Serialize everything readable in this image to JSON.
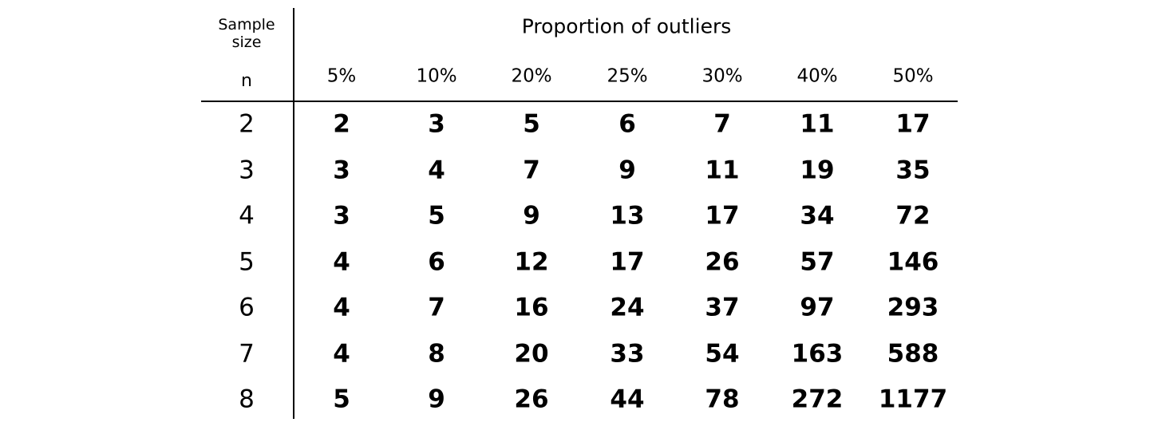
{
  "header": {
    "sample_label": "Sample\nsize",
    "n_label": "n",
    "proportion_label": "Proportion of outliers"
  },
  "columns": [
    "5%",
    "10%",
    "20%",
    "25%",
    "30%",
    "40%",
    "50%"
  ],
  "rows": [
    {
      "n": "2",
      "values": [
        "2",
        "3",
        "5",
        "6",
        "7",
        "11",
        "17"
      ]
    },
    {
      "n": "3",
      "values": [
        "3",
        "4",
        "7",
        "9",
        "11",
        "19",
        "35"
      ]
    },
    {
      "n": "4",
      "values": [
        "3",
        "5",
        "9",
        "13",
        "17",
        "34",
        "72"
      ]
    },
    {
      "n": "5",
      "values": [
        "4",
        "6",
        "12",
        "17",
        "26",
        "57",
        "146"
      ]
    },
    {
      "n": "6",
      "values": [
        "4",
        "7",
        "16",
        "24",
        "37",
        "97",
        "293"
      ]
    },
    {
      "n": "7",
      "values": [
        "4",
        "8",
        "20",
        "33",
        "54",
        "163",
        "588"
      ]
    },
    {
      "n": "8",
      "values": [
        "5",
        "9",
        "26",
        "44",
        "78",
        "272",
        "1177"
      ]
    }
  ]
}
